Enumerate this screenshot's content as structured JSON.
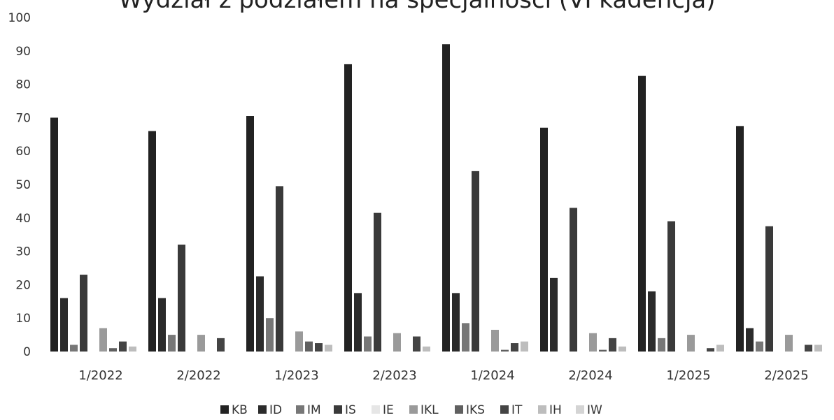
{
  "chart_data": {
    "type": "bar",
    "title": "Wydział z podziałem na specjalności (VI kadencja)",
    "xlabel": "",
    "ylabel": "",
    "ylim": [
      0,
      100
    ],
    "yticks": [
      0,
      10,
      20,
      30,
      40,
      50,
      60,
      70,
      80,
      90,
      100
    ],
    "grid": false,
    "legend_position": "bottom",
    "categories": [
      "1/2022",
      "2/2022",
      "1/2023",
      "2/2023",
      "1/2024",
      "2/2024",
      "1/2025",
      "2/2025"
    ],
    "series": [
      {
        "name": "KB",
        "color": "#222222",
        "values": [
          70,
          66,
          70.5,
          86,
          92,
          67,
          82.5,
          67.5
        ]
      },
      {
        "name": "ID",
        "color": "#2b2b2b",
        "values": [
          16,
          16,
          22.5,
          17.5,
          17.5,
          22,
          18,
          7
        ]
      },
      {
        "name": "IM",
        "color": "#777777",
        "values": [
          2,
          5,
          10,
          4.5,
          8.5,
          0,
          4,
          3
        ]
      },
      {
        "name": "IS",
        "color": "#3a3a3a",
        "values": [
          23,
          32,
          49.5,
          41.5,
          54,
          43,
          39,
          37.5
        ]
      },
      {
        "name": "IE",
        "color": "#e6e6e6",
        "values": [
          0,
          0,
          0,
          0,
          0,
          0,
          0,
          0
        ]
      },
      {
        "name": "IKL",
        "color": "#9a9a9a",
        "values": [
          7,
          5,
          6,
          5.5,
          6.5,
          5.5,
          5,
          5
        ]
      },
      {
        "name": "IKS",
        "color": "#606060",
        "values": [
          1,
          0,
          3,
          0,
          0.5,
          0.5,
          0,
          0
        ]
      },
      {
        "name": "IT",
        "color": "#444444",
        "values": [
          3,
          4,
          2.5,
          4.5,
          2.5,
          4,
          1,
          2
        ]
      },
      {
        "name": "IH",
        "color": "#bdbdbd",
        "values": [
          1.5,
          0,
          2,
          1.5,
          3,
          1.5,
          2,
          2
        ]
      },
      {
        "name": "IW",
        "color": "#d4d4d4",
        "values": [
          0,
          0,
          0,
          0,
          0,
          0,
          0,
          0
        ]
      }
    ]
  }
}
